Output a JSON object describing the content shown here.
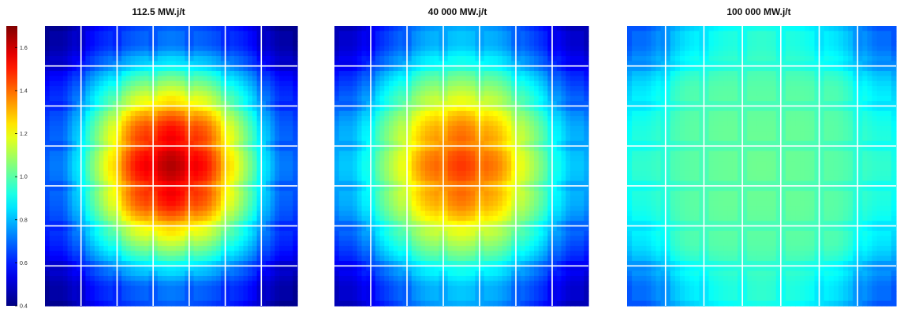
{
  "chart_data": {
    "type": "heatmap",
    "colorbar": {
      "min": 0.4,
      "max": 1.7,
      "ticks": [
        "0.4",
        "0.6",
        "0.8",
        "1.0",
        "1.2",
        "1.4",
        "1.6"
      ],
      "colormap": "jet"
    },
    "panels": [
      {
        "title": "112.5 MW.j/t",
        "grid": "7x7 assemblies",
        "values": [
          [
            0.45,
            0.6,
            0.68,
            0.72,
            0.68,
            0.6,
            0.45
          ],
          [
            0.6,
            0.85,
            1.05,
            1.12,
            1.05,
            0.85,
            0.6
          ],
          [
            0.68,
            1.05,
            1.4,
            1.52,
            1.4,
            1.05,
            0.68
          ],
          [
            0.72,
            1.12,
            1.52,
            1.65,
            1.52,
            1.12,
            0.72
          ],
          [
            0.68,
            1.05,
            1.4,
            1.52,
            1.4,
            1.05,
            0.68
          ],
          [
            0.6,
            0.85,
            1.05,
            1.12,
            1.05,
            0.85,
            0.6
          ],
          [
            0.45,
            0.6,
            0.68,
            0.72,
            0.68,
            0.6,
            0.45
          ]
        ]
      },
      {
        "title": "40 000 MW.j/t",
        "grid": "7x7 assemblies",
        "values": [
          [
            0.5,
            0.65,
            0.78,
            0.82,
            0.78,
            0.65,
            0.5
          ],
          [
            0.65,
            0.88,
            1.05,
            1.1,
            1.05,
            0.88,
            0.65
          ],
          [
            0.78,
            1.05,
            1.28,
            1.38,
            1.28,
            1.05,
            0.78
          ],
          [
            0.82,
            1.1,
            1.38,
            1.48,
            1.38,
            1.1,
            0.82
          ],
          [
            0.78,
            1.05,
            1.28,
            1.38,
            1.28,
            1.05,
            0.78
          ],
          [
            0.65,
            0.88,
            1.05,
            1.1,
            1.05,
            0.88,
            0.65
          ],
          [
            0.5,
            0.65,
            0.78,
            0.82,
            0.78,
            0.65,
            0.5
          ]
        ]
      },
      {
        "title": "100 000 MW.j/t",
        "grid": "7x7 assemblies",
        "values": [
          [
            0.7,
            0.85,
            0.92,
            0.95,
            0.92,
            0.85,
            0.7
          ],
          [
            0.85,
            0.98,
            1.0,
            1.0,
            1.0,
            0.98,
            0.85
          ],
          [
            0.92,
            1.0,
            1.02,
            1.02,
            1.02,
            1.0,
            0.92
          ],
          [
            0.95,
            1.0,
            1.02,
            1.03,
            1.02,
            1.0,
            0.95
          ],
          [
            0.92,
            1.0,
            1.02,
            1.02,
            1.02,
            1.0,
            0.92
          ],
          [
            0.85,
            0.98,
            1.0,
            1.0,
            1.0,
            0.98,
            0.85
          ],
          [
            0.7,
            0.85,
            0.92,
            0.95,
            0.92,
            0.85,
            0.7
          ]
        ]
      }
    ]
  }
}
